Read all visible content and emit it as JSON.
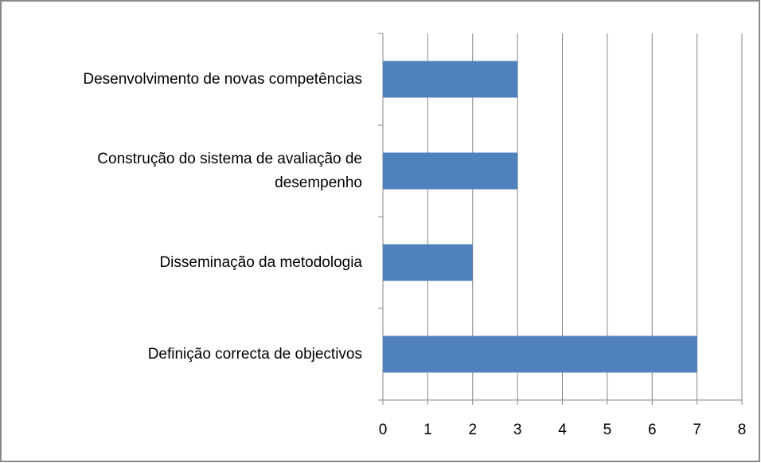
{
  "chart_data": {
    "type": "barh",
    "categories": [
      "Desenvolvimento de novas competências",
      "Construção do sistema de avaliação de desempenho",
      "Disseminação da metodologia",
      "Definição correcta de objectivos"
    ],
    "values": [
      3,
      3,
      2,
      7
    ],
    "color": "#4f81bd",
    "xlim": [
      0,
      8
    ],
    "xticks": [
      0,
      1,
      2,
      3,
      4,
      5,
      6,
      7,
      8
    ],
    "grid": true
  }
}
